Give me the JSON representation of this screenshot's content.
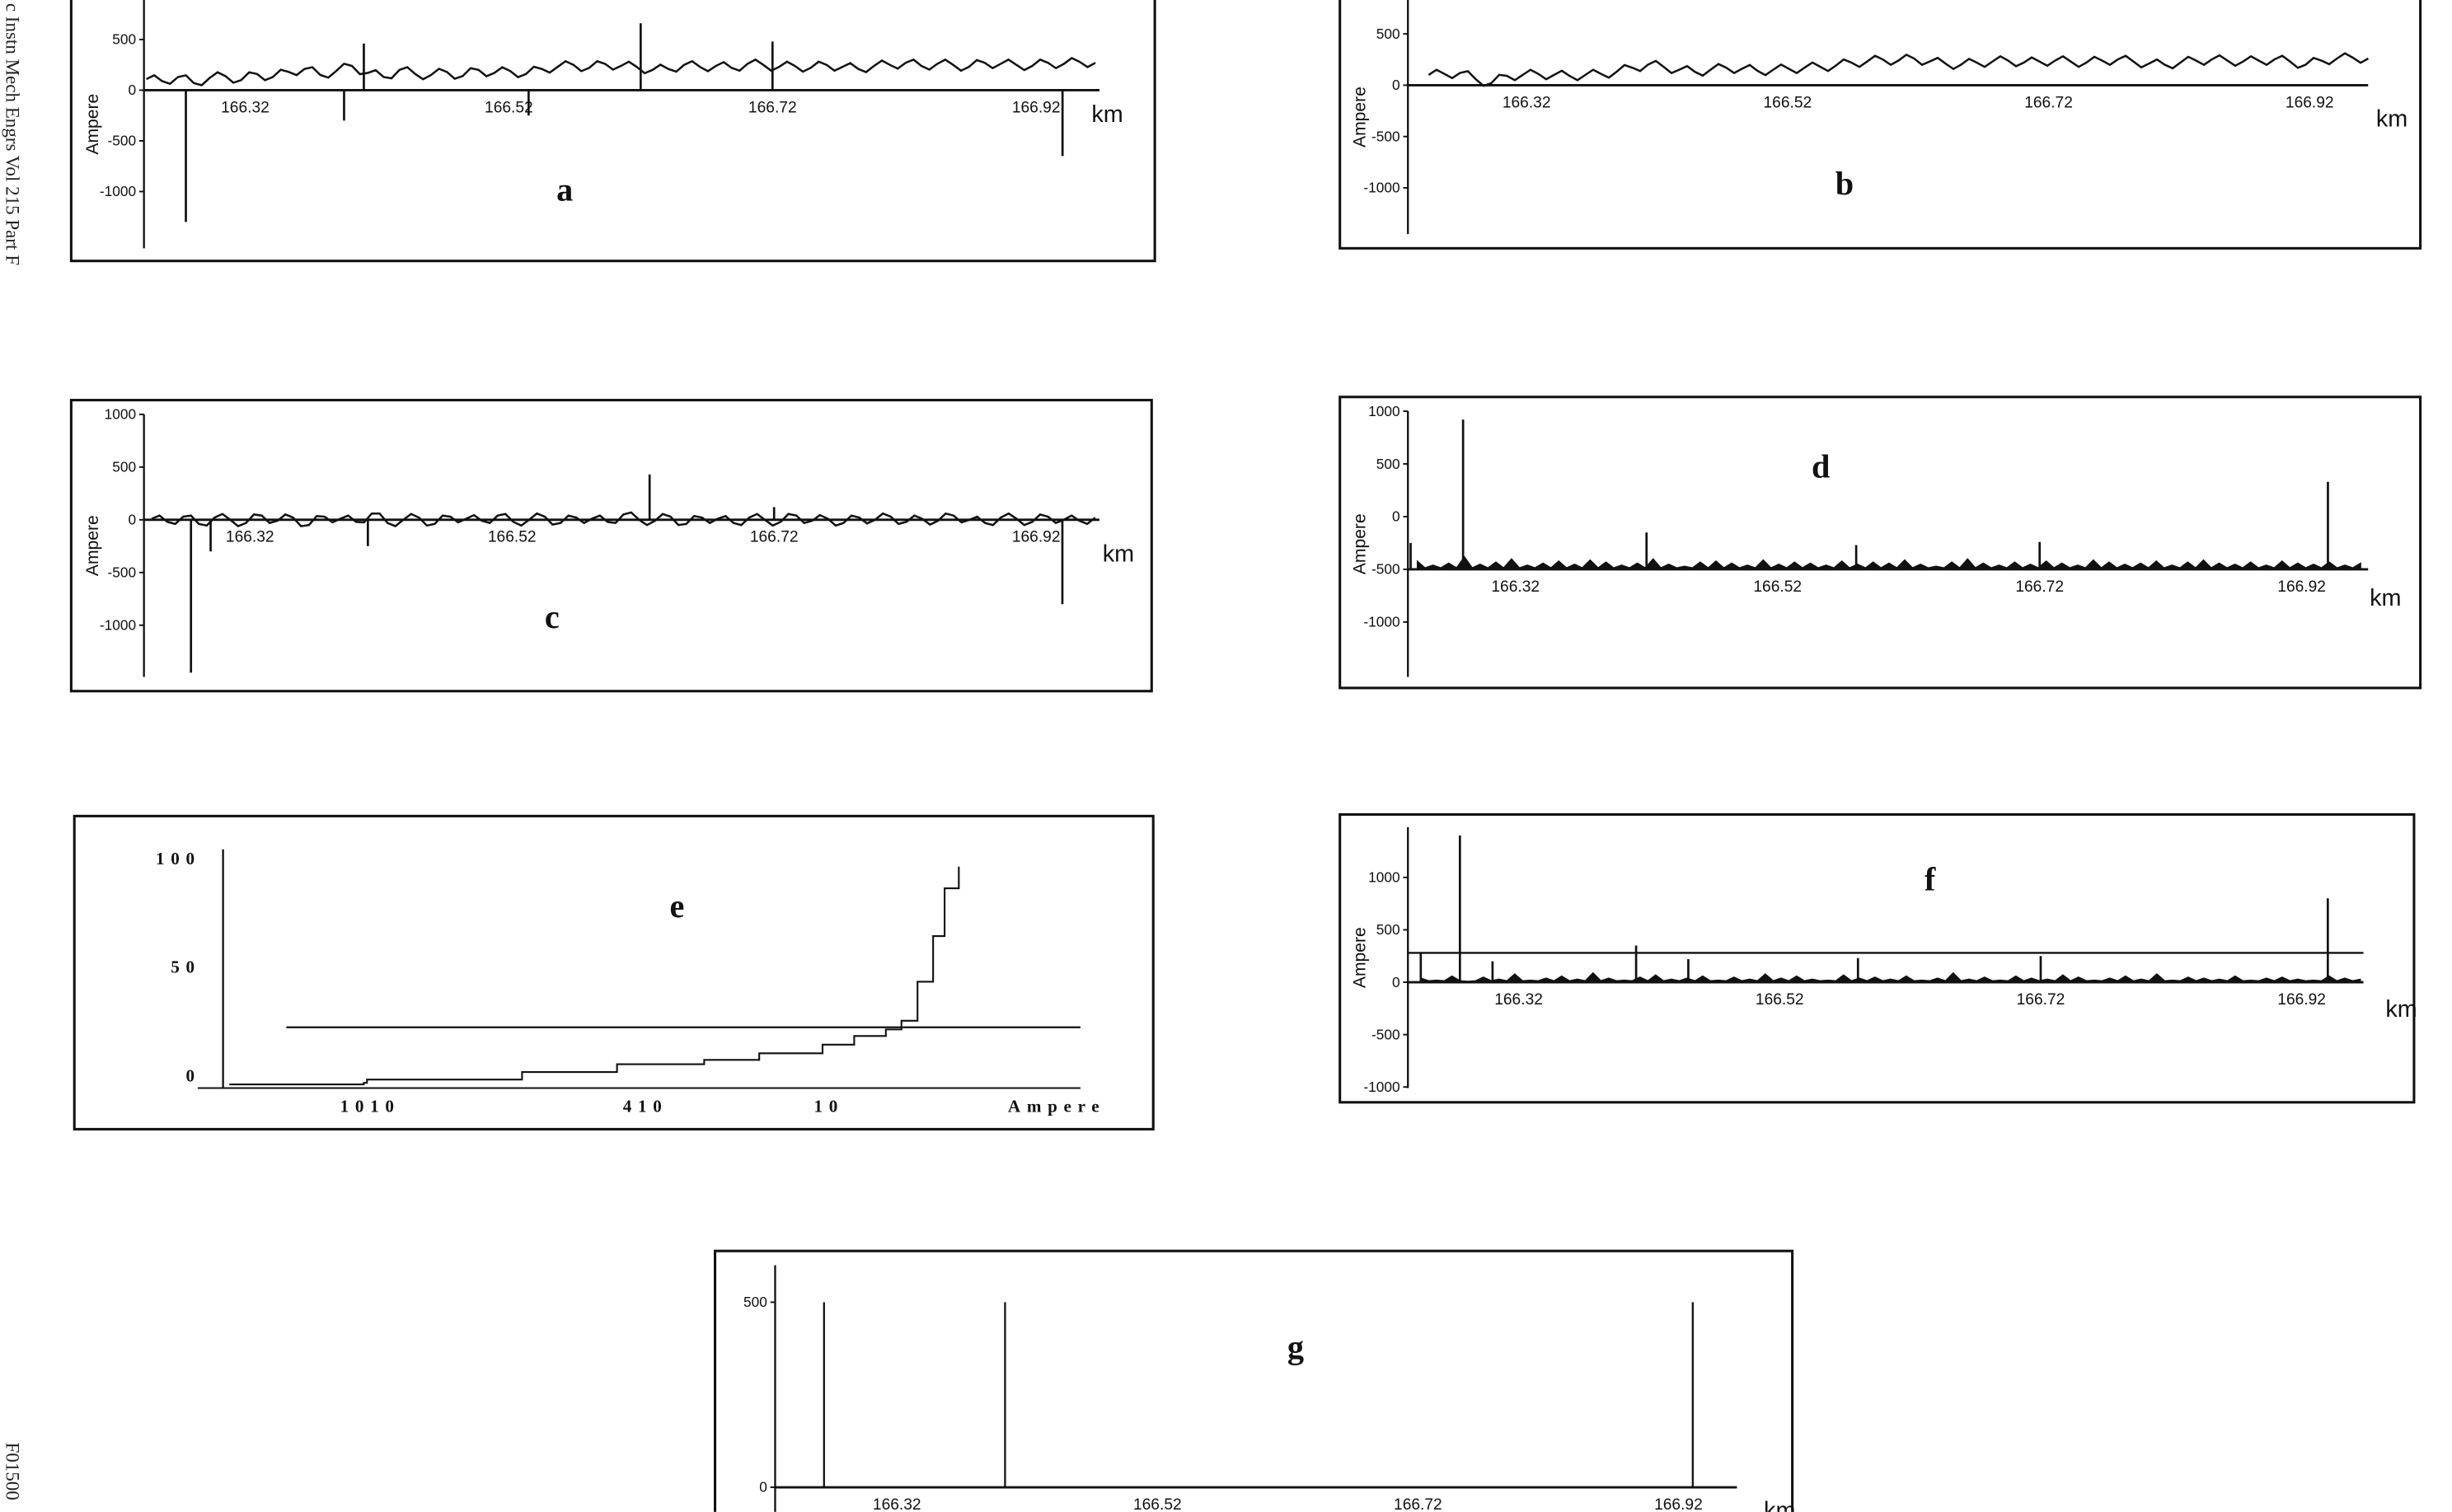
{
  "margin": {
    "journal_line": "c Instn Mech Engrs Vol 215 Part F",
    "code": "F01500"
  },
  "chart_data": [
    {
      "panel": "a",
      "type": "line",
      "label": "a",
      "ylabel": "Ampere",
      "xunit": "km",
      "yticks": [
        "500",
        "0",
        "-500",
        "-1000"
      ],
      "ytick_values": [
        500,
        0,
        -500,
        -1000
      ],
      "xticks": [
        "166.32",
        "166.52",
        "166.72",
        "166.92"
      ],
      "xtick_values": [
        166.32,
        166.52,
        166.72,
        166.92
      ],
      "ylim": [
        890,
        -1560
      ],
      "baseline": 0,
      "x_start": 166.245,
      "x_step": 0.012,
      "values": [
        110,
        90,
        130,
        70,
        120,
        140,
        100,
        160,
        130,
        180,
        210,
        150,
        190,
        240,
        170,
        130,
        200,
        160,
        150,
        180,
        140,
        200,
        170,
        190,
        160,
        210,
        230,
        250,
        220,
        260,
        240,
        230,
        200,
        210,
        250,
        230,
        240,
        220,
        260,
        250,
        230,
        240,
        220,
        250,
        230,
        210,
        240,
        250,
        270,
        240,
        260,
        250,
        230,
        270,
        260,
        250,
        240,
        270,
        260,
        280,
        270
      ],
      "spikes": [
        {
          "km": 166.275,
          "A": -1300
        },
        {
          "km": 166.395,
          "A": -300
        },
        {
          "km": 166.41,
          "A": 460
        },
        {
          "km": 166.535,
          "A": -250
        },
        {
          "km": 166.62,
          "A": 660
        },
        {
          "km": 166.72,
          "A": 480
        },
        {
          "km": 166.94,
          "A": -650
        }
      ]
    },
    {
      "panel": "b",
      "type": "line",
      "label": "b",
      "ylabel": "Ampere",
      "xunit": "km",
      "yticks": [
        "500",
        "0",
        "-500",
        "-1000"
      ],
      "ytick_values": [
        500,
        0,
        -500,
        -1000
      ],
      "xticks": [
        "166.32",
        "166.52",
        "166.72",
        "166.92"
      ],
      "xtick_values": [
        166.32,
        166.52,
        166.72,
        166.92
      ],
      "ylim": [
        830,
        -1450
      ],
      "baseline": 0,
      "x_start": 166.245,
      "x_step": 0.012,
      "values": [
        100,
        110,
        120,
        60,
        20,
        90,
        100,
        110,
        100,
        90,
        100,
        110,
        130,
        170,
        200,
        180,
        150,
        130,
        150,
        170,
        160,
        140,
        150,
        160,
        170,
        180,
        190,
        220,
        230,
        250,
        240,
        260,
        230,
        210,
        200,
        220,
        230,
        240,
        220,
        230,
        240,
        230,
        220,
        240,
        250,
        230,
        210,
        200,
        220,
        240,
        250,
        240,
        230,
        240,
        250,
        230,
        200,
        240,
        260,
        270,
        260
      ],
      "spikes": []
    },
    {
      "panel": "c",
      "type": "line",
      "label": "c",
      "ylabel": "Ampere",
      "xunit": "km",
      "yticks": [
        "1000",
        "500",
        "0",
        "-500",
        "-1000"
      ],
      "ytick_values": [
        1000,
        500,
        0,
        -500,
        -1000
      ],
      "xticks": [
        "166.32",
        "166.52",
        "166.72",
        "166.92"
      ],
      "xtick_values": [
        166.32,
        166.52,
        166.72,
        166.92
      ],
      "ylim": [
        1000,
        -1490
      ],
      "baseline": 0,
      "x_start": 166.245,
      "x_step": 0.012,
      "values": [
        10,
        -20,
        30,
        -40,
        20,
        0,
        -30,
        40,
        -10,
        20,
        -50,
        30,
        10,
        -20,
        60,
        -30,
        0,
        20,
        -40,
        30,
        10,
        -10,
        40,
        -20,
        0,
        30,
        -30,
        20,
        10,
        -20,
        50,
        0,
        -10,
        30,
        -40,
        20,
        10,
        -30,
        20,
        0,
        -20,
        40,
        -10,
        10,
        -30,
        20,
        0,
        30,
        -20,
        10,
        -10,
        40,
        0,
        -30,
        20,
        10,
        -20,
        30,
        0,
        -10,
        20
      ],
      "spikes": [
        {
          "km": 166.275,
          "A": -1450
        },
        {
          "km": 166.29,
          "A": -300
        },
        {
          "km": 166.41,
          "A": -250
        },
        {
          "km": 166.625,
          "A": 430
        },
        {
          "km": 166.72,
          "A": 120
        },
        {
          "km": 166.94,
          "A": -800
        }
      ]
    },
    {
      "panel": "d",
      "type": "bar",
      "label": "d",
      "ylabel": "Ampere",
      "xunit": "km",
      "yticks": [
        "1000",
        "500",
        "0",
        "-500",
        "-1000"
      ],
      "ytick_values": [
        1000,
        500,
        0,
        -500,
        -1000
      ],
      "xticks": [
        "166.32",
        "166.52",
        "166.72",
        "166.92"
      ],
      "xtick_values": [
        166.32,
        166.52,
        166.72,
        166.92
      ],
      "ylim": [
        1000,
        -1520
      ],
      "baseline": -500,
      "x_start": 166.245,
      "x_step": 0.012,
      "values": [
        -420,
        -460,
        -440,
        -380,
        -450,
        -430,
        -400,
        -460,
        -440,
        -420,
        -450,
        -410,
        -430,
        -460,
        -440,
        -400,
        -450,
        -470,
        -430,
        -420,
        -440,
        -460,
        -410,
        -450,
        -430,
        -440,
        -460,
        -420,
        -450,
        -430,
        -440,
        -410,
        -450,
        -470,
        -430,
        -400,
        -440,
        -460,
        -430,
        -450,
        -420,
        -440,
        -460,
        -410,
        -430,
        -450,
        -440,
        -420,
        -460,
        -430,
        -410,
        -440,
        -450,
        -430,
        -460,
        -420,
        -440,
        -450,
        -430,
        -460,
        -440
      ],
      "spikes": [
        {
          "km": 166.24,
          "A": -250
        },
        {
          "km": 166.28,
          "A": 920
        },
        {
          "km": 166.42,
          "A": -150
        },
        {
          "km": 166.58,
          "A": -270
        },
        {
          "km": 166.72,
          "A": -240
        },
        {
          "km": 166.94,
          "A": 330
        }
      ]
    },
    {
      "panel": "e",
      "type": "line",
      "label": "e",
      "yticks": [
        "100",
        "50",
        "0"
      ],
      "ytick_values": [
        100,
        50,
        0
      ],
      "xticks": [
        "1010",
        "410",
        "10"
      ],
      "xtick_values": [
        1010,
        410,
        10
      ],
      "xunit": "Ampere",
      "ylim": [
        104,
        -6
      ],
      "threshold": 22,
      "points": [
        [
          1317,
          -4.3
        ],
        [
          1024,
          -3.6
        ],
        [
          1017,
          -2.1
        ],
        [
          707,
          -2.1
        ],
        [
          679,
          1.4
        ],
        [
          489,
          1.4
        ],
        [
          472,
          5
        ],
        [
          300,
          5
        ],
        [
          282,
          7
        ],
        [
          162,
          10
        ],
        [
          24,
          14
        ],
        [
          -45,
          18
        ],
        [
          -114,
          21
        ],
        [
          -148,
          25
        ],
        [
          -183,
          43
        ],
        [
          -217,
          64
        ],
        [
          -242,
          86
        ],
        [
          -273,
          96
        ]
      ]
    },
    {
      "panel": "f",
      "type": "bar",
      "label": "f",
      "ylabel": "Ampere",
      "xunit": "km",
      "yticks": [
        "1000",
        "500",
        "0",
        "-500",
        "-1000"
      ],
      "ytick_values": [
        1000,
        500,
        0,
        -500,
        -1000
      ],
      "xticks": [
        "166.32",
        "166.52",
        "166.72",
        "166.92"
      ],
      "xtick_values": [
        166.32,
        166.52,
        166.72,
        166.92
      ],
      "ylim": [
        1480,
        -1010
      ],
      "baseline": 0,
      "threshold": 280,
      "x_start": 166.245,
      "x_step": 0.012,
      "values": [
        40,
        20,
        60,
        10,
        50,
        30,
        80,
        20,
        40,
        60,
        30,
        90,
        40,
        20,
        50,
        70,
        30,
        40,
        60,
        20,
        50,
        30,
        80,
        40,
        60,
        30,
        20,
        70,
        40,
        50,
        30,
        60,
        20,
        40,
        90,
        30,
        50,
        20,
        60,
        40,
        30,
        70,
        50,
        20,
        40,
        60,
        30,
        80,
        20,
        50,
        40,
        30,
        60,
        20,
        40,
        50,
        30,
        20,
        60,
        40,
        30
      ],
      "spikes": [
        {
          "km": 166.245,
          "A": 280
        },
        {
          "km": 166.275,
          "A": 1400
        },
        {
          "km": 166.3,
          "A": 200
        },
        {
          "km": 166.41,
          "A": 350
        },
        {
          "km": 166.45,
          "A": 220
        },
        {
          "km": 166.58,
          "A": 230
        },
        {
          "km": 166.72,
          "A": 250
        },
        {
          "km": 166.94,
          "A": 800
        }
      ]
    },
    {
      "panel": "g",
      "type": "bar",
      "label": "g",
      "xunit": "km",
      "yticks": [
        "500",
        "0"
      ],
      "ytick_values": [
        500,
        0
      ],
      "xticks": [
        "166.32",
        "166.52",
        "166.72",
        "166.92"
      ],
      "xtick_values": [
        166.32,
        166.52,
        166.72,
        166.92
      ],
      "ylim": [
        600,
        -105
      ],
      "baseline": 0,
      "x_start": 166.245,
      "x_step": 0.012,
      "values": [],
      "spikes": [
        {
          "km": 166.264,
          "A": 500
        },
        {
          "km": 166.403,
          "A": 500
        },
        {
          "km": 166.931,
          "A": 500
        }
      ]
    }
  ]
}
